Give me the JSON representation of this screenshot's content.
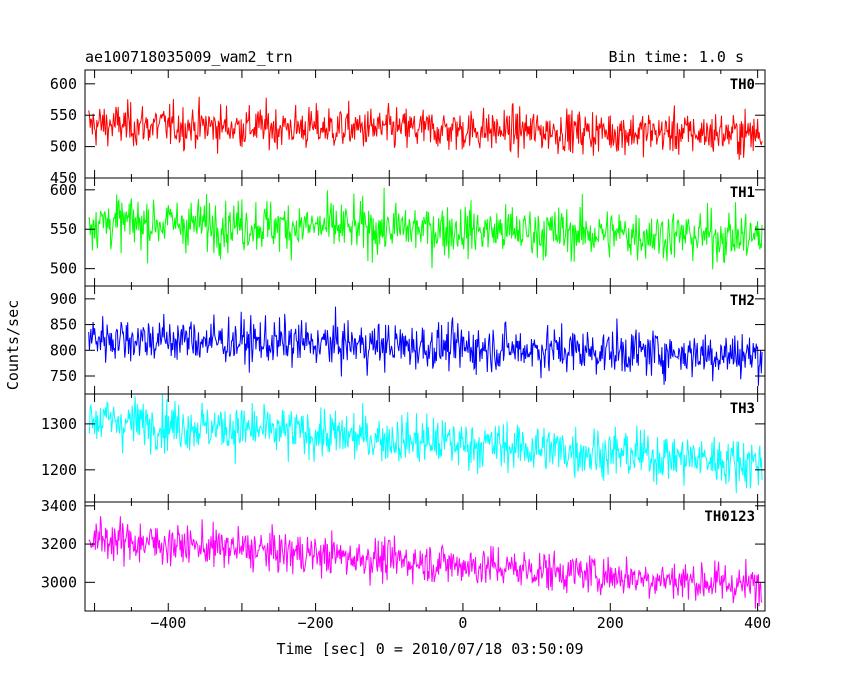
{
  "header": {
    "title": "ae100718035009_wam2_trn",
    "bin_time": "Bin time: 1.0 s"
  },
  "chart_data": {
    "type": "line",
    "xlabel": "Time [sec] 0 = 2010/07/18 03:50:09",
    "ylabel": "Counts/sec",
    "xlim": [
      -513,
      410
    ],
    "x_ticks": [
      -400,
      -200,
      0,
      200,
      400
    ],
    "x_start": -508,
    "x_end": 406,
    "bin_time_s": 1.0,
    "panels": [
      {
        "name": "TH0",
        "color": "#ff0000",
        "ylim": [
          450,
          622
        ],
        "y_ticks": [
          450,
          500,
          550,
          600
        ],
        "trend_start": 535,
        "trend_end": 520,
        "noise": 24
      },
      {
        "name": "TH1",
        "color": "#00ff00",
        "ylim": [
          478,
          615
        ],
        "y_ticks": [
          500,
          550,
          600
        ],
        "trend_start": 560,
        "trend_end": 540,
        "noise": 23
      },
      {
        "name": "TH2",
        "color": "#0000ff",
        "ylim": [
          715,
          925
        ],
        "y_ticks": [
          750,
          800,
          850,
          900
        ],
        "trend_start": 825,
        "trend_end": 790,
        "noise": 32
      },
      {
        "name": "TH3",
        "color": "#00ffff",
        "ylim": [
          1130,
          1365
        ],
        "y_ticks": [
          1200,
          1300
        ],
        "trend_start": 1310,
        "trend_end": 1215,
        "noise": 38
      },
      {
        "name": "TH0123",
        "color": "#ff00ff",
        "ylim": [
          2850,
          3420
        ],
        "y_ticks": [
          3000,
          3200,
          3400
        ],
        "trend_start": 3230,
        "trend_end": 2980,
        "noise": 75
      }
    ]
  }
}
